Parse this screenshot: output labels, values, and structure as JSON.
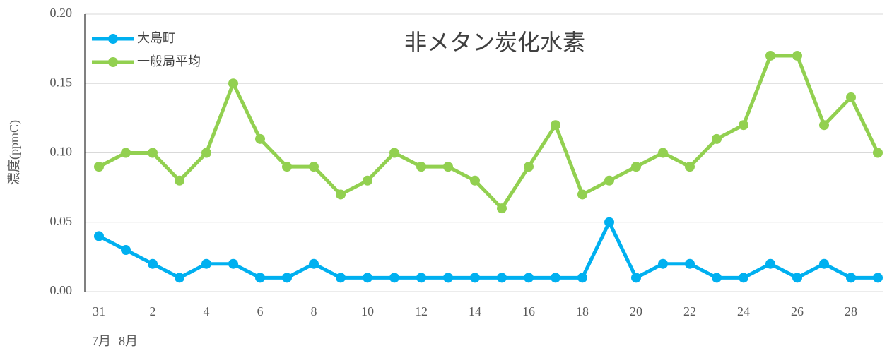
{
  "chart_data": {
    "type": "line",
    "title": "非メタン炭化水素",
    "y_label": "濃度(ppmC)",
    "annotations": [
      "7月",
      "8月"
    ],
    "categories": [
      "31",
      null,
      "2",
      null,
      "4",
      null,
      "6",
      null,
      "8",
      null,
      "10",
      null,
      "12",
      null,
      "14",
      null,
      "16",
      null,
      "18",
      null,
      "20",
      null,
      "22",
      null,
      "24",
      null,
      "26",
      null,
      "28",
      null
    ],
    "series": [
      {
        "name": "大島町",
        "color": "#00b0f0",
        "values": [
          0.04,
          0.03,
          0.02,
          0.01,
          0.02,
          0.02,
          0.01,
          0.01,
          0.02,
          0.01,
          0.01,
          0.01,
          0.01,
          0.01,
          0.01,
          0.01,
          0.01,
          0.01,
          0.01,
          0.05,
          0.01,
          0.02,
          0.02,
          0.01,
          0.01,
          0.02,
          0.01,
          0.02,
          0.01,
          0.01
        ]
      },
      {
        "name": "一般局平均",
        "color": "#92d050",
        "values": [
          0.09,
          0.1,
          0.1,
          0.08,
          0.1,
          0.15,
          0.11,
          0.09,
          0.09,
          0.07,
          0.08,
          0.1,
          0.09,
          0.09,
          0.08,
          0.06,
          0.09,
          0.12,
          0.07,
          0.08,
          0.09,
          0.1,
          0.09,
          0.11,
          0.12,
          0.17,
          0.17,
          0.12,
          0.14,
          0.1
        ]
      }
    ],
    "ylim": [
      0,
      0.2
    ],
    "yticks": [
      {
        "value": 0,
        "label": "0.00"
      },
      0.05,
      {
        "value": 0.1,
        "label": "0.10"
      },
      0.15,
      {
        "value": 0.2,
        "label": "0.20"
      }
    ],
    "grid": true,
    "legend": "top-left"
  }
}
